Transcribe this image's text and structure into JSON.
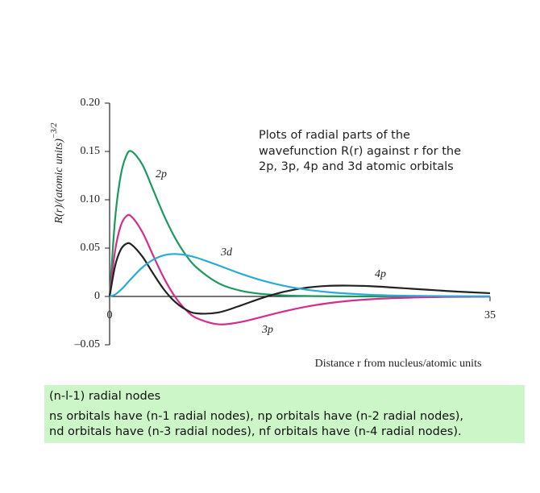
{
  "chart_data": {
    "type": "line",
    "y_label": {
      "text": "R(r)/(atomic units)",
      "exponent": "−3/2"
    },
    "x_label": "Distance r from nucleus/atomic units",
    "annotation": [
      "Plots of radial parts of the",
      "wavefunction R(r) against r for the",
      "2p, 3p, 4p and 3d atomic orbitals"
    ],
    "x": [
      0,
      0.5,
      1,
      1.5,
      2,
      3,
      4,
      5,
      6,
      7,
      8,
      10,
      12,
      14,
      16,
      18,
      20,
      22,
      24,
      26,
      28,
      30,
      32,
      35
    ],
    "series": [
      {
        "name": "2p",
        "color": "#1c9a5c",
        "values": [
          0,
          0.0795,
          0.1238,
          0.1446,
          0.1502,
          0.1366,
          0.1105,
          0.0838,
          0.061,
          0.0431,
          0.0299,
          0.0138,
          0.0061,
          0.0026,
          0.0011,
          0.0005,
          0.0002,
          0.0001,
          0,
          0,
          0,
          0,
          0,
          0
        ]
      },
      {
        "name": "3p",
        "color": "#d42d8c",
        "values": [
          0,
          0.0469,
          0.0723,
          0.0826,
          0.0828,
          0.0668,
          0.0425,
          0.019,
          0,
          -0.0137,
          -0.0224,
          -0.0288,
          -0.0266,
          -0.0212,
          -0.0156,
          -0.0108,
          -0.0072,
          -0.0046,
          -0.0029,
          -0.0018,
          -0.0011,
          -0.0007,
          -0.0004,
          -0.0002
        ]
      },
      {
        "name": "4p",
        "color": "#222222",
        "values": [
          0,
          0.0313,
          0.0479,
          0.0543,
          0.0538,
          0.0415,
          0.0238,
          0.0072,
          -0.0054,
          -0.0135,
          -0.0175,
          -0.0166,
          -0.0096,
          -0.0017,
          0.0047,
          0.0089,
          0.0109,
          0.0112,
          0.0106,
          0.0093,
          0.0078,
          0.0064,
          0.005,
          0.0034
        ]
      },
      {
        "name": "3d",
        "color": "#2aaad8",
        "values": [
          0,
          0.0019,
          0.0065,
          0.0123,
          0.0185,
          0.0299,
          0.038,
          0.0426,
          0.0439,
          0.0428,
          0.0401,
          0.0322,
          0.0238,
          0.0166,
          0.0111,
          0.0072,
          0.0046,
          0.0029,
          0.0017,
          0.001,
          0.0006,
          0.0004,
          0.0002,
          0.0001
        ]
      }
    ],
    "xlim": [
      0,
      35
    ],
    "xticks": [
      0,
      35
    ],
    "ylim": [
      -0.05,
      0.2
    ],
    "yticks": [
      {
        "value": 0.2,
        "label": "0.20"
      },
      0.15,
      {
        "value": 0.1,
        "label": "0.10"
      },
      0.05,
      0,
      {
        "value": -0.05,
        "label": "–0.05"
      }
    ],
    "grid": false
  },
  "note": {
    "title": "(n-l-1) radial nodes",
    "lines": [
      "ns orbitals have (n-1 radial nodes), np orbitals have (n-2 radial nodes),",
      "nd orbitals have (n-3 radial nodes), nf orbitals have (n-4 radial nodes)."
    ]
  }
}
